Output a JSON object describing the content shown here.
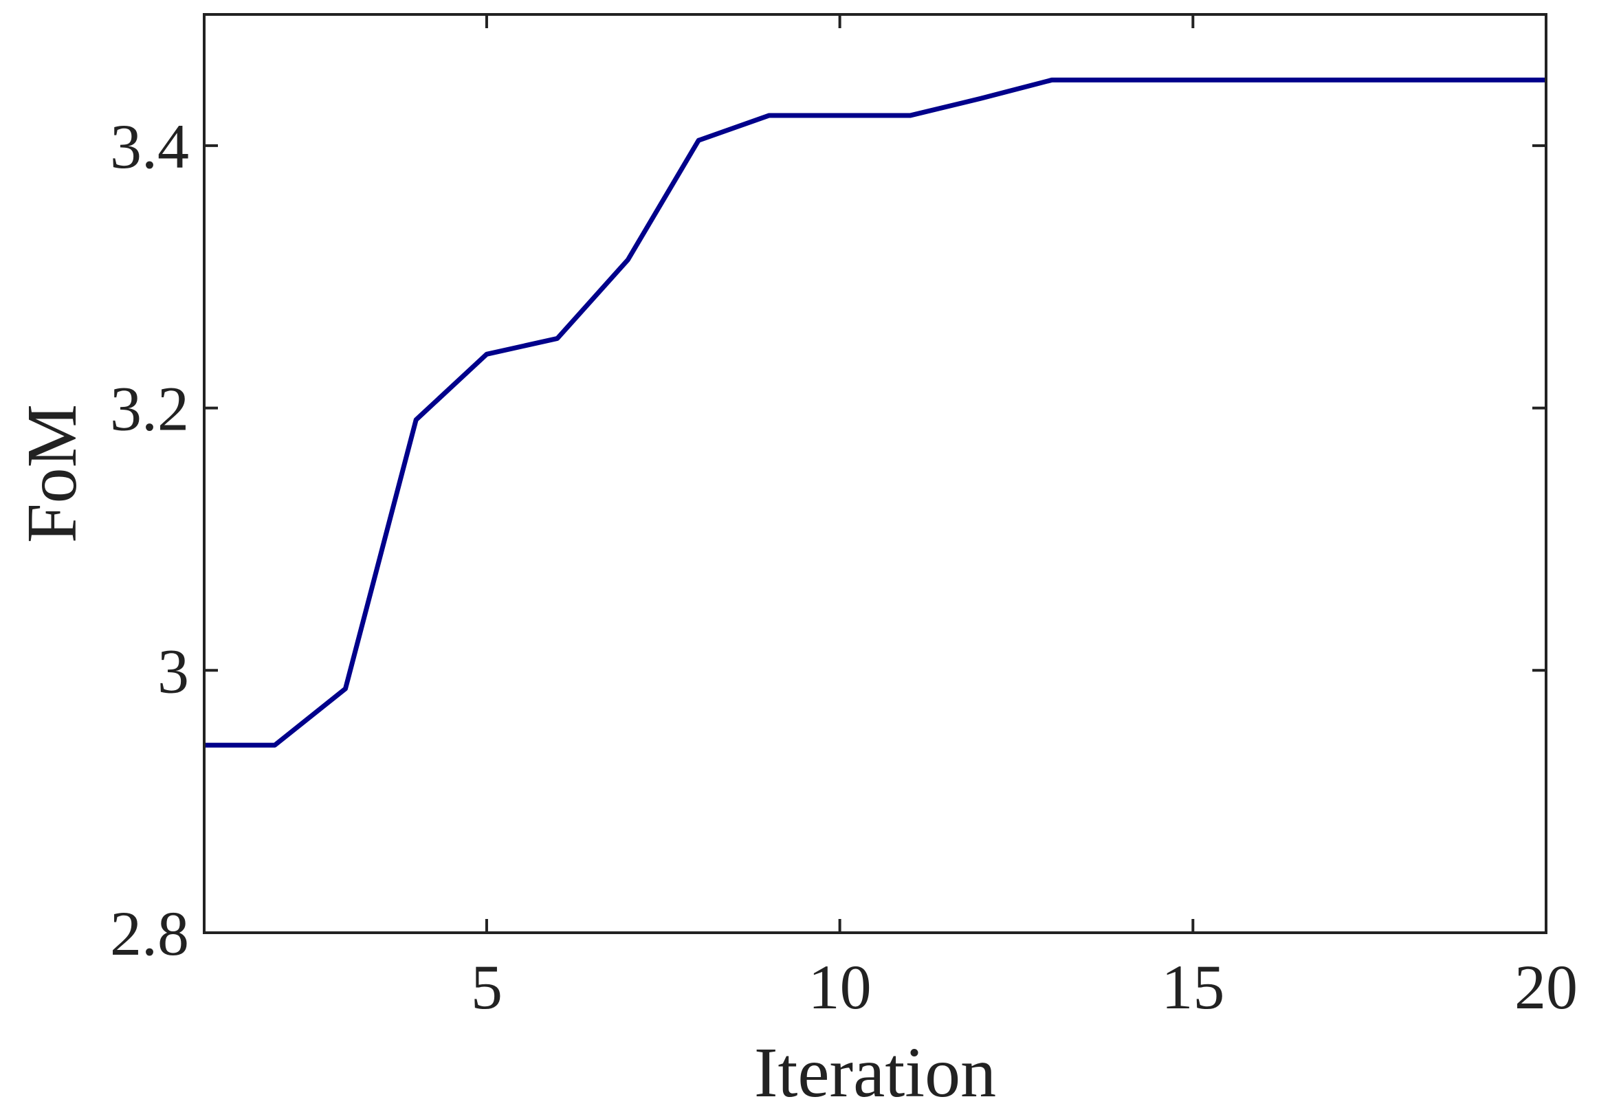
{
  "chart_data": {
    "type": "line",
    "x_label": "Iteration",
    "y_label": "FoM",
    "x": [
      1,
      2,
      3,
      4,
      5,
      6,
      7,
      8,
      9,
      10,
      11,
      12,
      13,
      14,
      15,
      16,
      17,
      18,
      19,
      20
    ],
    "series": [
      {
        "name": "FoM",
        "color": "#00008b",
        "values": [
          2.943,
          2.943,
          2.986,
          3.191,
          3.241,
          3.253,
          3.313,
          3.404,
          3.423,
          3.423,
          3.423,
          3.436,
          3.45,
          3.45,
          3.45,
          3.45,
          3.45,
          3.45,
          3.45,
          3.45
        ]
      }
    ],
    "xlim": [
      1,
      20
    ],
    "xticks": [
      5,
      10,
      15,
      20
    ],
    "ylim": [
      2.8,
      3.5
    ],
    "yticks": [
      2.8,
      3,
      3.2,
      3.4
    ],
    "grid": false,
    "legend": false
  }
}
